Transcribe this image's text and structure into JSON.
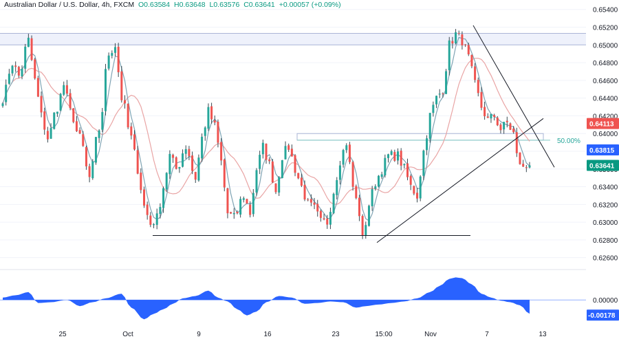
{
  "header": {
    "symbol": "Australian Dollar / U.S. Dollar, 4h, FXCM",
    "open": "O0.63584",
    "high": "H0.63648",
    "low": "L0.63576",
    "close": "C0.63641",
    "change": "+0.00057 (+0.09%)"
  },
  "colors": {
    "up": "#26a69a",
    "down": "#ef5350",
    "wick": "#37474f",
    "ma_fast": "#7fa3b3",
    "ma_slow": "#e9a4a4",
    "oscillator": "#2962ff",
    "band": "#eef1fb",
    "band_line": "#aab4d6",
    "fib": "#80cbc4",
    "grid": "#f0f3fa"
  },
  "chart_data": [
    {
      "type": "candlestick",
      "title": "Australian Dollar / U.S. Dollar, 4h, FXCM",
      "x_ticks": [
        "25",
        "Oct",
        "9",
        "16",
        "23",
        "15:00",
        "Nov",
        "7",
        "13"
      ],
      "y_ticks": [
        "0.65400",
        "0.65200",
        "0.65000",
        "0.64800",
        "0.64600",
        "0.64400",
        "0.64200",
        "0.64000",
        "0.63800",
        "0.63600",
        "0.63400",
        "0.63200",
        "0.63000",
        "0.62800",
        "0.62600"
      ],
      "ylim": [
        0.6252,
        0.6546
      ],
      "price_labels": {
        "level_1": {
          "value": 0.64113,
          "text": "0.64113",
          "color": "#ef5350"
        },
        "level_2": {
          "value": 0.63815,
          "text": "0.63815",
          "color": "#2962ff"
        },
        "last": {
          "value": 0.63641,
          "text": "0.63641",
          "color": "#089981"
        }
      },
      "fib_label": "50.00%",
      "resistance_band": [
        0.65,
        0.6513
      ],
      "support_level": 0.6285,
      "fib_zone": [
        0.63925,
        0.64
      ],
      "anchors": [
        {
          "t": 0,
          "p": 0.644
        },
        {
          "t": 3,
          "p": 0.648
        },
        {
          "t": 5,
          "p": 0.6465
        },
        {
          "t": 8,
          "p": 0.6505
        },
        {
          "t": 10,
          "p": 0.646
        },
        {
          "t": 12,
          "p": 0.642
        },
        {
          "t": 14,
          "p": 0.6395
        },
        {
          "t": 17,
          "p": 0.643
        },
        {
          "t": 19,
          "p": 0.6455
        },
        {
          "t": 21,
          "p": 0.6425
        },
        {
          "t": 24,
          "p": 0.6395
        },
        {
          "t": 27,
          "p": 0.635
        },
        {
          "t": 30,
          "p": 0.6405
        },
        {
          "t": 33,
          "p": 0.649
        },
        {
          "t": 35,
          "p": 0.65
        },
        {
          "t": 37,
          "p": 0.644
        },
        {
          "t": 40,
          "p": 0.6395
        },
        {
          "t": 42,
          "p": 0.636
        },
        {
          "t": 44,
          "p": 0.6318
        },
        {
          "t": 46,
          "p": 0.6298
        },
        {
          "t": 48,
          "p": 0.6305
        },
        {
          "t": 50,
          "p": 0.634
        },
        {
          "t": 52,
          "p": 0.6375
        },
        {
          "t": 54,
          "p": 0.636
        },
        {
          "t": 57,
          "p": 0.6385
        },
        {
          "t": 60,
          "p": 0.635
        },
        {
          "t": 62,
          "p": 0.6395
        },
        {
          "t": 64,
          "p": 0.6425
        },
        {
          "t": 66,
          "p": 0.6408
        },
        {
          "t": 68,
          "p": 0.6368
        },
        {
          "t": 70,
          "p": 0.631
        },
        {
          "t": 72,
          "p": 0.6305
        },
        {
          "t": 75,
          "p": 0.633
        },
        {
          "t": 77,
          "p": 0.631
        },
        {
          "t": 79,
          "p": 0.636
        },
        {
          "t": 81,
          "p": 0.6385
        },
        {
          "t": 83,
          "p": 0.6365
        },
        {
          "t": 85,
          "p": 0.6335
        },
        {
          "t": 87,
          "p": 0.6375
        },
        {
          "t": 89,
          "p": 0.6385
        },
        {
          "t": 91,
          "p": 0.636
        },
        {
          "t": 93,
          "p": 0.634
        },
        {
          "t": 95,
          "p": 0.632
        },
        {
          "t": 97,
          "p": 0.6315
        },
        {
          "t": 99,
          "p": 0.63
        },
        {
          "t": 101,
          "p": 0.63
        },
        {
          "t": 103,
          "p": 0.6335
        },
        {
          "t": 105,
          "p": 0.637
        },
        {
          "t": 107,
          "p": 0.639
        },
        {
          "t": 109,
          "p": 0.634
        },
        {
          "t": 111,
          "p": 0.631
        },
        {
          "t": 112,
          "p": 0.628
        },
        {
          "t": 114,
          "p": 0.632
        },
        {
          "t": 116,
          "p": 0.6345
        },
        {
          "t": 118,
          "p": 0.636
        },
        {
          "t": 120,
          "p": 0.6375
        },
        {
          "t": 123,
          "p": 0.6375
        },
        {
          "t": 125,
          "p": 0.636
        },
        {
          "t": 127,
          "p": 0.634
        },
        {
          "t": 129,
          "p": 0.633
        },
        {
          "t": 131,
          "p": 0.638
        },
        {
          "t": 133,
          "p": 0.642
        },
        {
          "t": 135,
          "p": 0.644
        },
        {
          "t": 137,
          "p": 0.645
        },
        {
          "t": 139,
          "p": 0.65
        },
        {
          "t": 141,
          "p": 0.6512
        },
        {
          "t": 143,
          "p": 0.6505
        },
        {
          "t": 145,
          "p": 0.6485
        },
        {
          "t": 147,
          "p": 0.6455
        },
        {
          "t": 149,
          "p": 0.643
        },
        {
          "t": 151,
          "p": 0.6415
        },
        {
          "t": 153,
          "p": 0.642
        },
        {
          "t": 155,
          "p": 0.6405
        },
        {
          "t": 157,
          "p": 0.6412
        },
        {
          "t": 159,
          "p": 0.64
        },
        {
          "t": 160,
          "p": 0.6375
        },
        {
          "t": 162,
          "p": 0.636
        },
        {
          "t": 164,
          "p": 0.63641
        }
      ],
      "oscillator": {
        "zero_label": "0.00000",
        "last_label": "-0.00178",
        "ylim": [
          -0.003,
          0.0032
        ],
        "anchors": [
          {
            "t": 0,
            "v": 0.0003
          },
          {
            "t": 4,
            "v": 0.0006
          },
          {
            "t": 8,
            "v": 0.001
          },
          {
            "t": 11,
            "v": -0.0004
          },
          {
            "t": 15,
            "v": -0.0003
          },
          {
            "t": 20,
            "v": 0.0
          },
          {
            "t": 24,
            "v": -0.0008
          },
          {
            "t": 28,
            "v": -0.0003
          },
          {
            "t": 32,
            "v": 0.0002
          },
          {
            "t": 37,
            "v": 0.0008
          },
          {
            "t": 40,
            "v": -0.001
          },
          {
            "t": 44,
            "v": -0.0025
          },
          {
            "t": 47,
            "v": -0.0018
          },
          {
            "t": 50,
            "v": -0.0012
          },
          {
            "t": 53,
            "v": -0.0005
          },
          {
            "t": 56,
            "v": 0.0002
          },
          {
            "t": 60,
            "v": 0.0005
          },
          {
            "t": 64,
            "v": 0.0012
          },
          {
            "t": 67,
            "v": 0.0003
          },
          {
            "t": 70,
            "v": -0.0002
          },
          {
            "t": 73,
            "v": -0.0012
          },
          {
            "t": 76,
            "v": -0.002
          },
          {
            "t": 79,
            "v": -0.0015
          },
          {
            "t": 82,
            "v": -0.0003
          },
          {
            "t": 86,
            "v": 0.0005
          },
          {
            "t": 90,
            "v": 0.0003
          },
          {
            "t": 94,
            "v": -0.0005
          },
          {
            "t": 98,
            "v": -0.0004
          },
          {
            "t": 102,
            "v": -0.0002
          },
          {
            "t": 106,
            "v": -0.0003
          },
          {
            "t": 110,
            "v": -0.001
          },
          {
            "t": 113,
            "v": -0.0008
          },
          {
            "t": 117,
            "v": -0.0006
          },
          {
            "t": 121,
            "v": -0.0004
          },
          {
            "t": 125,
            "v": -0.0002
          },
          {
            "t": 129,
            "v": 0.0002
          },
          {
            "t": 133,
            "v": 0.001
          },
          {
            "t": 136,
            "v": 0.0018
          },
          {
            "t": 139,
            "v": 0.0027
          },
          {
            "t": 141,
            "v": 0.0029
          },
          {
            "t": 143,
            "v": 0.0028
          },
          {
            "t": 146,
            "v": 0.002
          },
          {
            "t": 149,
            "v": 0.0008
          },
          {
            "t": 152,
            "v": 0.0003
          },
          {
            "t": 155,
            "v": -0.0001
          },
          {
            "t": 158,
            "v": -0.0003
          },
          {
            "t": 161,
            "v": -0.0007
          },
          {
            "t": 164,
            "v": -0.00178
          }
        ]
      }
    }
  ]
}
